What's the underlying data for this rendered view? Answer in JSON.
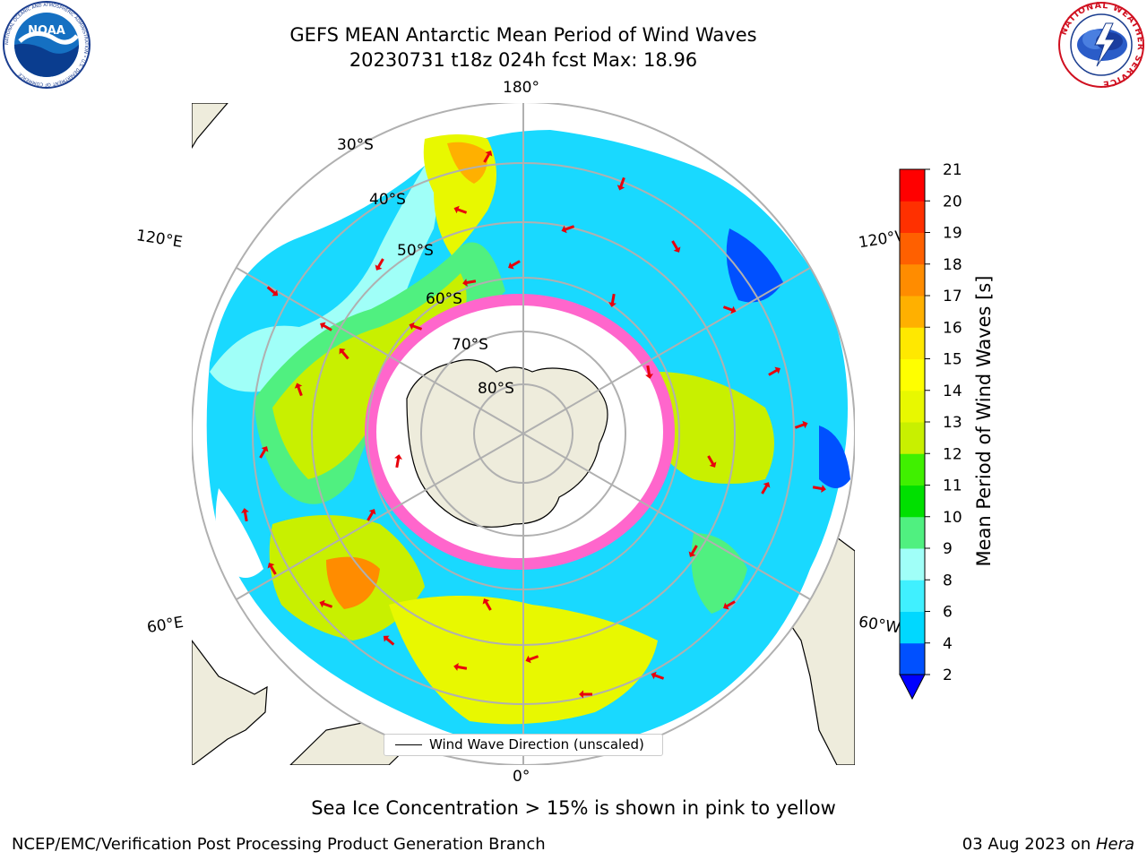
{
  "header": {
    "title_line1": "GEFS MEAN Antarctic Mean Period of Wind Waves",
    "title_line2": "20230731 t18z 024h fcst   Max: 18.96"
  },
  "logos": {
    "noaa": {
      "text": "NOAA",
      "ring_text": "NATIONAL OCEANIC AND ATMOSPHERIC ADMINISTRATION • U.S. DEPARTMENT OF COMMERCE",
      "icon": "noaa-logo-icon"
    },
    "nws": {
      "ring_text": "NATIONAL WEATHER SERVICE",
      "icon": "nws-logo-icon"
    }
  },
  "map": {
    "projection": "south-polar-stereographic",
    "longitude_labels": {
      "top": "180°",
      "bottom": "0°",
      "upper_left": "120°E",
      "lower_left": "60°E",
      "upper_right": "120°W",
      "lower_right": "60°W"
    },
    "latitude_labels": [
      "30°S",
      "40°S",
      "50°S",
      "60°S",
      "70°S",
      "80°S"
    ],
    "colors": {
      "land": "#eeecdc",
      "ocean_open": "#ffffff",
      "sea_ice": "#ff66cc",
      "arrows": "#e8000b",
      "graticule": "#b0b0b0"
    },
    "legend": {
      "text": "Wind Wave Direction (unscaled)"
    }
  },
  "colorbar": {
    "label": "Mean Period of Wind Waves [s]",
    "ticks": [
      "2",
      "4",
      "6",
      "8",
      "9",
      "10",
      "11",
      "12",
      "13",
      "14",
      "15",
      "16",
      "17",
      "18",
      "19",
      "20",
      "21"
    ],
    "colors": [
      "#0050ff",
      "#00d8ff",
      "#40f0ff",
      "#a0fff8",
      "#50f080",
      "#00e000",
      "#40f000",
      "#c8f000",
      "#e8f800",
      "#ffff00",
      "#ffe800",
      "#ffb000",
      "#ff8c00",
      "#ff6000",
      "#ff3000",
      "#ff0000"
    ],
    "under_color": "#0000ff",
    "extend": "min"
  },
  "notes": {
    "sea_ice": "Sea Ice Concentration > 15% is shown in pink to yellow"
  },
  "footer": {
    "left": "NCEP/EMC/Verification Post Processing Product Generation Branch",
    "right_date": "03 Aug 2023 on ",
    "right_host": "Hera"
  }
}
